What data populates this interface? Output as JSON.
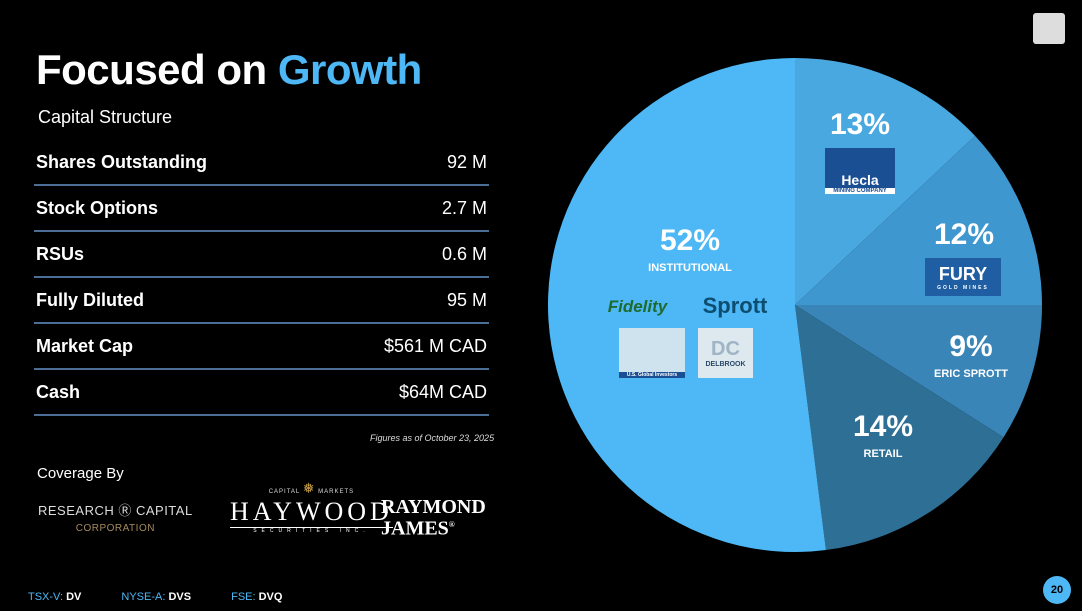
{
  "title": {
    "part1": "Focused on ",
    "part2": "Growth"
  },
  "subtitle": "Capital Structure",
  "table": [
    {
      "label": "Shares Outstanding",
      "value": "92 M"
    },
    {
      "label": "Stock Options",
      "value": "2.7 M"
    },
    {
      "label": "RSUs",
      "value": "0.6 M"
    },
    {
      "label": "Fully Diluted",
      "value": "95 M"
    },
    {
      "label": "Market Cap",
      "value": "$561 M CAD"
    },
    {
      "label": "Cash",
      "value": "$64M CAD"
    }
  ],
  "note": "Figures as of October 23, 2025",
  "coverage": {
    "label": "Coverage By",
    "logos": [
      "RESEARCH CAPITAL CORPORATION",
      "HAYWOOD SECURITIES INC.",
      "RAYMOND JAMES"
    ]
  },
  "tickers": [
    {
      "exchange": "TSX-V:",
      "symbol": "DV"
    },
    {
      "exchange": "NYSE-A:",
      "symbol": "DVS"
    },
    {
      "exchange": "FSE:",
      "symbol": "DVQ"
    }
  ],
  "page_number": "20",
  "colors": {
    "accent": "#4db8f5",
    "background": "#000000"
  },
  "chart_data": {
    "type": "pie",
    "start": "12 o'clock, clockwise",
    "slices": [
      {
        "label": "13%",
        "name": "",
        "value": 13,
        "color": "#4aa8e0",
        "logo": "Hecla MINING COMPANY"
      },
      {
        "label": "12%",
        "name": "",
        "value": 12,
        "color": "#3f97cf",
        "logo": "FURY GOLD MINES"
      },
      {
        "label": "9%",
        "name": "ERIC SPROTT",
        "value": 9,
        "color": "#3985b8"
      },
      {
        "label": "14%",
        "name": "RETAIL",
        "value": 14,
        "color": "#2e6f96"
      },
      {
        "label": "52%",
        "name": "INSTITUTIONAL",
        "value": 52,
        "color": "#4db8f5",
        "logos": [
          "Fidelity",
          "Sprott",
          "U.S. Global Investors",
          "DELBROOK"
        ]
      }
    ]
  }
}
